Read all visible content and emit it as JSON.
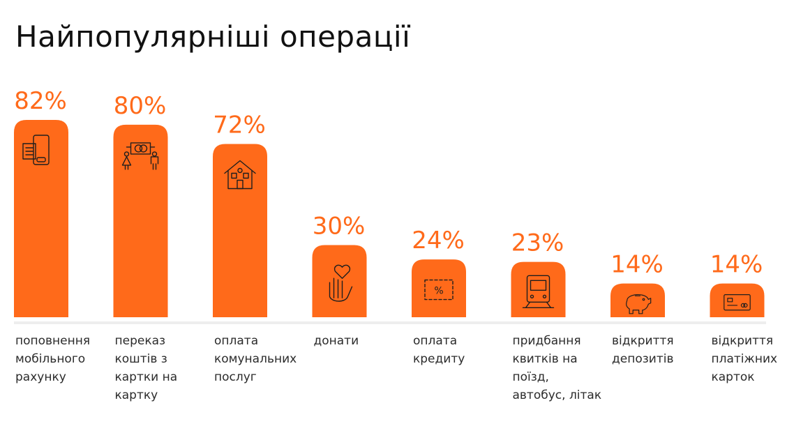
{
  "colors": {
    "bar": "#FF6A1A",
    "baseline": "#EEEEEE",
    "title": "#111111",
    "label": "#2B2B2B",
    "icon": "#1E1E1E"
  },
  "chart_data": {
    "type": "bar",
    "title": "Найпопулярніші операції",
    "ylim": [
      0,
      100
    ],
    "unit": "%",
    "categories": [
      "поповнення мобільного рахунку",
      "переказ коштів з картки на картку",
      "оплата комунальних послуг",
      "донати",
      "оплата кредиту",
      "придбання квитків на поїзд, автобус, літак",
      "відкриття депозитів",
      "відкриття платіжних карток"
    ],
    "category_lines": [
      "поповнення\nмобільного\nрахунку",
      "переказ\nкоштів з\nкартки на\nкартку",
      "оплата\nкомунальних\nпослуг",
      "донати",
      "оплата\nкредиту",
      "придбання\nквитків на\nпоїзд,\nавтобус, літак",
      "відкриття\nдепозитів",
      "відкриття\nплатіжних\nкарток"
    ],
    "values": [
      82,
      80,
      72,
      30,
      24,
      23,
      14,
      14
    ],
    "value_labels": [
      "82%",
      "80%",
      "72%",
      "30%",
      "24%",
      "23%",
      "14%",
      "14%"
    ],
    "icons": [
      "phone-icon",
      "transfer-icon",
      "house-icon",
      "donation-hand-icon",
      "credit-icon",
      "train-icon",
      "piggy-bank-icon",
      "card-icon"
    ]
  }
}
